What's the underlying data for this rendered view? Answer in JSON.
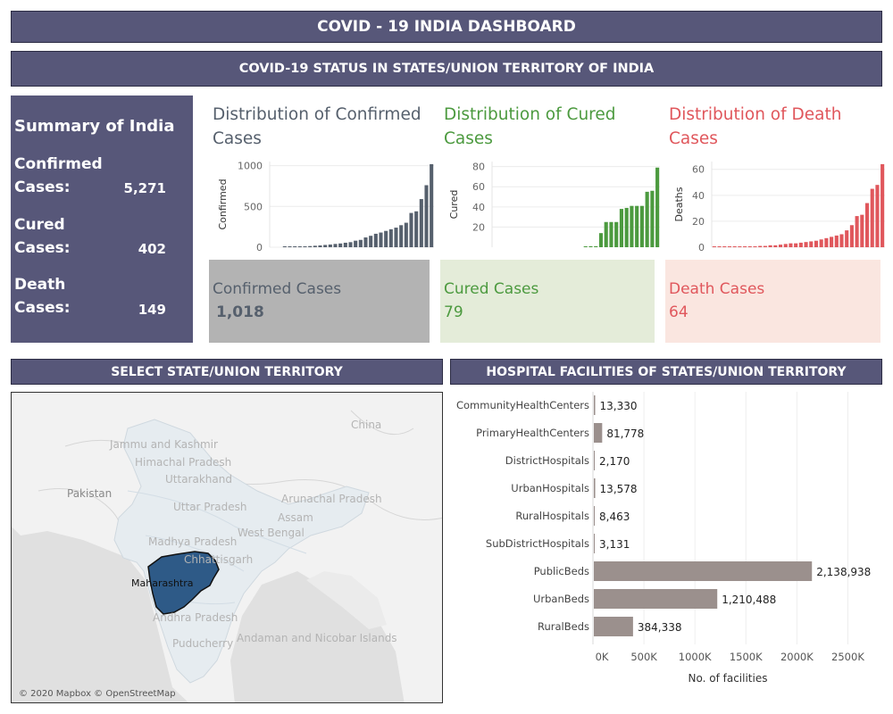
{
  "header": {
    "title": "COVID - 19  INDIA DASHBOARD",
    "status_title": "COVID-19 STATUS IN STATES/UNION TERRITORY OF INDIA"
  },
  "summary": {
    "title": "Summary of India",
    "confirmed_label_1": "Confirmed",
    "confirmed_label_2": "Cases:",
    "confirmed_value": "5,271",
    "cured_label_1": "Cured",
    "cured_label_2": "Cases:",
    "cured_value": "402",
    "death_label_1": "Death",
    "death_label_2": "Cases:",
    "death_value": "149"
  },
  "distributions": {
    "confirmed": {
      "title_line1": "Distribution of Confirmed",
      "title_line2": "Cases",
      "color": "#56606d"
    },
    "cured": {
      "title_line1": "Distribution of Cured",
      "title_line2": "Cases",
      "color": "#4c9a3f"
    },
    "death": {
      "title_line1": "Distribution of Death",
      "title_line2": "Cases",
      "color": "#e0575c"
    }
  },
  "kpis": {
    "confirmed": {
      "label": "Confirmed Cases",
      "value": "1,018",
      "bg": "#b3b3b3",
      "color": "#56606d"
    },
    "cured": {
      "label": "Cured Cases",
      "value": "79",
      "bg": "#e4ecd9",
      "color": "#4c9a3f"
    },
    "death": {
      "label": "Death Cases",
      "value": "64",
      "bg": "#fae6e0",
      "color": "#e0575c"
    }
  },
  "sections": {
    "select_title": "SELECT STATE/UNION TERRITORY",
    "hospital_title": "HOSPITAL FACILITIES OF STATES/UNION TERRITORY"
  },
  "map": {
    "attribution": "© 2020 Mapbox © OpenStreetMap",
    "selected_state": "Maharashtra",
    "labels": [
      "China",
      "Jammu and Kashmir",
      "Himachal Pradesh",
      "Uttarakhand",
      "Pakistan",
      "Uttar Pradesh",
      "Arunachal Pradesh",
      "Assam",
      "West Bengal",
      "Madhya Pradesh",
      "Chhattisgarh",
      "Andhra Pradesh",
      "Puducherry",
      "Andaman and Nicobar Islands"
    ],
    "highlight_color": "#2e5a87"
  },
  "chart_data": [
    {
      "id": "confirmed",
      "type": "bar",
      "ylabel": "Confirmed",
      "yticks": [
        0,
        500,
        1000
      ],
      "ylim": [
        0,
        1050
      ],
      "values": [
        2,
        3,
        6,
        9,
        11,
        14,
        18,
        22,
        28,
        33,
        40,
        46,
        55,
        62,
        80,
        90,
        120,
        140,
        165,
        180,
        200,
        220,
        240,
        270,
        300,
        420,
        440,
        590,
        760,
        1018
      ],
      "color": "#56606d"
    },
    {
      "id": "cured",
      "type": "bar",
      "ylabel": "Cured",
      "yticks": [
        20,
        40,
        60,
        80
      ],
      "ylim": [
        0,
        85
      ],
      "values": [
        0,
        0,
        0,
        0,
        0,
        0,
        0,
        0,
        0,
        0,
        0,
        0,
        0,
        0,
        0,
        0,
        0.5,
        1,
        1,
        14,
        25,
        25,
        25,
        38,
        39,
        41,
        41,
        41,
        55,
        56,
        79
      ],
      "color": "#4c9a3f"
    },
    {
      "id": "deaths",
      "type": "bar",
      "ylabel": "Deaths",
      "yticks": [
        0,
        20,
        40,
        60
      ],
      "ylim": [
        0,
        66
      ],
      "values": [
        0.3,
        0.3,
        0.3,
        0.5,
        0.5,
        0.5,
        0.5,
        0.7,
        0.7,
        1,
        1,
        1.5,
        1.5,
        2,
        2.5,
        3,
        3,
        3.5,
        4,
        4.5,
        5,
        6,
        7,
        8,
        9,
        10,
        13,
        17,
        24,
        25,
        34,
        45,
        48,
        64
      ],
      "color": "#e0575c"
    },
    {
      "id": "hospital_facilities",
      "type": "bar",
      "orientation": "horizontal",
      "categories": [
        "CommunityHealthCenters",
        "PrimaryHealthCenters",
        "DistrictHospitals",
        "UrbanHospitals",
        "RuralHospitals",
        "SubDistrictHospitals",
        "PublicBeds",
        "UrbanBeds",
        "RuralBeds"
      ],
      "values": [
        13330,
        81778,
        2170,
        13578,
        8463,
        3131,
        2138938,
        1210488,
        384338
      ],
      "value_labels": [
        "13,330",
        "81,778",
        "2,170",
        "13,578",
        "8,463",
        "3,131",
        "2,138,938",
        "1,210,488",
        "384,338"
      ],
      "xticks": [
        0,
        500000,
        1000000,
        1500000,
        2000000,
        2500000
      ],
      "xtick_labels": [
        "0K",
        "500K",
        "1000K",
        "1500K",
        "2000K",
        "2500K"
      ],
      "xlim": [
        0,
        2750000
      ],
      "xlabel": "No. of facilities",
      "color": "#9b908d"
    }
  ]
}
